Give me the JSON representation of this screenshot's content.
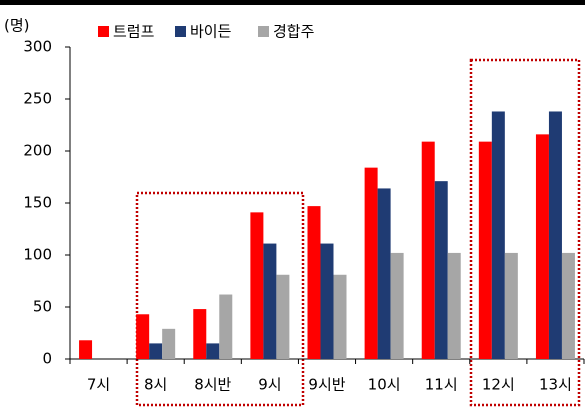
{
  "chart_data": {
    "type": "bar",
    "y_unit_label": "(명)",
    "categories": [
      "7시",
      "8시",
      "8시반",
      "9시",
      "9시반",
      "10시",
      "11시",
      "12시",
      "13시"
    ],
    "series": [
      {
        "name": "트럼프",
        "color": "#ff0000",
        "values": [
          18,
          43,
          48,
          141,
          147,
          184,
          209,
          209,
          216
        ]
      },
      {
        "name": "바이든",
        "color": "#1f3b73",
        "values": [
          null,
          15,
          15,
          111,
          111,
          164,
          171,
          238,
          238
        ]
      },
      {
        "name": "경합주",
        "color": "#a6a6a6",
        "values": [
          null,
          29,
          62,
          81,
          81,
          102,
          102,
          102,
          102
        ]
      }
    ],
    "ylim": [
      0,
      300
    ],
    "yticks": [
      0,
      50,
      100,
      150,
      200,
      250,
      300
    ],
    "grid": false
  }
}
